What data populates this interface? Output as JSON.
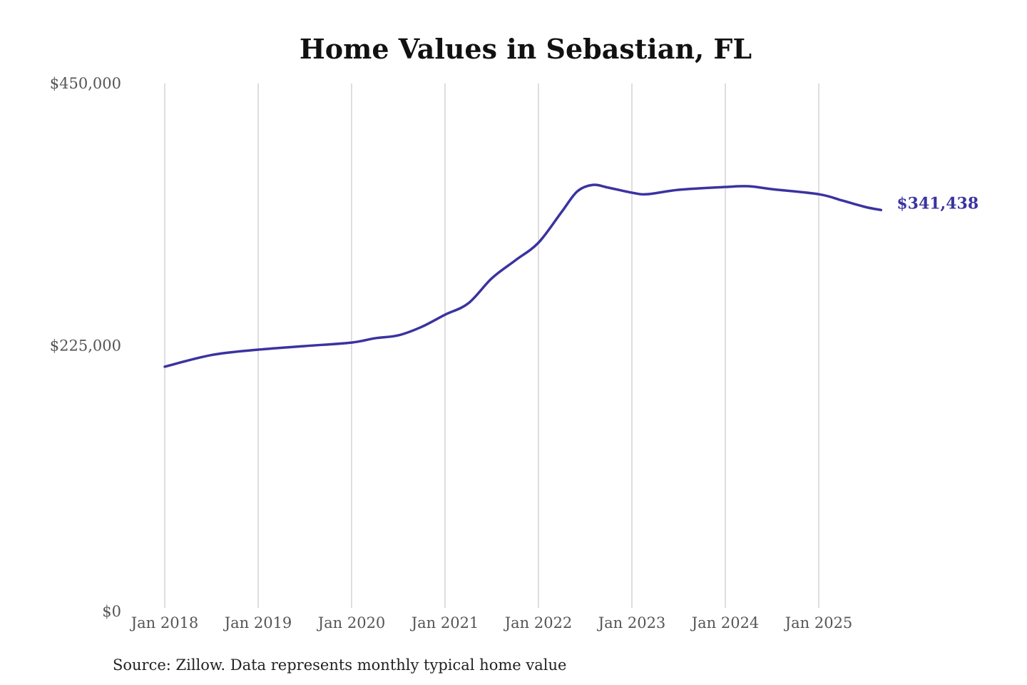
{
  "chart_data": {
    "type": "line",
    "title": "Home Values in Sebastian, FL",
    "source": "Source: Zillow. Data represents monthly typical home value",
    "xlabel": "",
    "ylabel": "",
    "ylim": [
      0,
      450000
    ],
    "y_ticks": [
      {
        "value": 0,
        "label": "$0"
      },
      {
        "value": 225000,
        "label": "$225,000"
      },
      {
        "value": 450000,
        "label": "$450,000"
      }
    ],
    "x_ticks": [
      {
        "date": "2018-01",
        "label": "Jan 2018"
      },
      {
        "date": "2019-01",
        "label": "Jan 2019"
      },
      {
        "date": "2020-01",
        "label": "Jan 2020"
      },
      {
        "date": "2021-01",
        "label": "Jan 2021"
      },
      {
        "date": "2022-01",
        "label": "Jan 2022"
      },
      {
        "date": "2023-01",
        "label": "Jan 2023"
      },
      {
        "date": "2024-01",
        "label": "Jan 2024"
      },
      {
        "date": "2025-01",
        "label": "Jan 2025"
      }
    ],
    "grid": "vertical",
    "line_color": "#3a33a0",
    "end_label": "$341,438",
    "series": [
      {
        "points": [
          {
            "x": "2018-01",
            "y": 207000
          },
          {
            "x": "2018-07",
            "y": 217000
          },
          {
            "x": "2019-01",
            "y": 221600
          },
          {
            "x": "2019-07",
            "y": 224700
          },
          {
            "x": "2020-01",
            "y": 227700
          },
          {
            "x": "2020-04",
            "y": 231400
          },
          {
            "x": "2020-07",
            "y": 233900
          },
          {
            "x": "2020-10",
            "y": 241200
          },
          {
            "x": "2021-01",
            "y": 251600
          },
          {
            "x": "2021-04",
            "y": 261400
          },
          {
            "x": "2021-07",
            "y": 282800
          },
          {
            "x": "2021-10",
            "y": 298100
          },
          {
            "x": "2022-01",
            "y": 313400
          },
          {
            "x": "2022-04",
            "y": 340000
          },
          {
            "x": "2022-06",
            "y": 357500
          },
          {
            "x": "2022-08",
            "y": 363000
          },
          {
            "x": "2022-10",
            "y": 360600
          },
          {
            "x": "2023-01",
            "y": 356300
          },
          {
            "x": "2023-03",
            "y": 355000
          },
          {
            "x": "2023-07",
            "y": 358800
          },
          {
            "x": "2024-01",
            "y": 361200
          },
          {
            "x": "2024-04",
            "y": 361800
          },
          {
            "x": "2024-07",
            "y": 359300
          },
          {
            "x": "2025-01",
            "y": 355000
          },
          {
            "x": "2025-04",
            "y": 349600
          },
          {
            "x": "2025-07",
            "y": 344000
          },
          {
            "x": "2025-09",
            "y": 341438
          }
        ]
      }
    ]
  }
}
